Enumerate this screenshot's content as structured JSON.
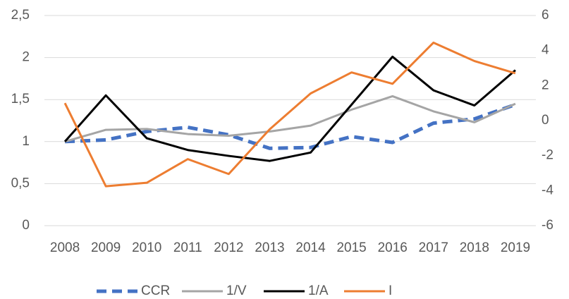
{
  "chart_data": {
    "type": "line",
    "categories": [
      "2008",
      "2009",
      "2010",
      "2011",
      "2012",
      "2013",
      "2014",
      "2015",
      "2016",
      "2017",
      "2018",
      "2019"
    ],
    "series": [
      {
        "name": "CCR",
        "color": "#4472c4",
        "dashed": true,
        "values": [
          1.0,
          1.02,
          1.12,
          1.17,
          1.08,
          0.92,
          0.93,
          1.06,
          0.99,
          1.22,
          1.27,
          1.44
        ]
      },
      {
        "name": "1/V",
        "color": "#a5a5a5",
        "values": [
          1.0,
          1.14,
          1.15,
          1.09,
          1.07,
          1.12,
          1.19,
          1.38,
          1.54,
          1.36,
          1.23,
          1.45
        ]
      },
      {
        "name": "1/A",
        "color": "#000000",
        "values": [
          1.0,
          1.55,
          1.04,
          0.9,
          0.83,
          0.77,
          0.87,
          1.44,
          2.01,
          1.61,
          1.43,
          1.85
        ]
      },
      {
        "name": "I",
        "color": "#ed7d31",
        "axis": "y2",
        "values": [
          1.0,
          -3.75,
          -3.55,
          -2.2,
          -3.05,
          -0.5,
          1.55,
          2.75,
          2.1,
          4.45,
          3.4,
          2.7
        ]
      }
    ],
    "ylim": [
      0,
      2.5
    ],
    "yticks": [
      0,
      {
        "value": 0.5,
        "label": "0,5"
      },
      1,
      {
        "value": 1.5,
        "label": "1,5"
      },
      2,
      {
        "value": 2.5,
        "label": "2,5"
      }
    ],
    "y2lim": [
      -6,
      6
    ],
    "y2ticks": [
      -6,
      -4,
      -2,
      0,
      2,
      4,
      6
    ],
    "grid": true,
    "legend": "bottom"
  }
}
